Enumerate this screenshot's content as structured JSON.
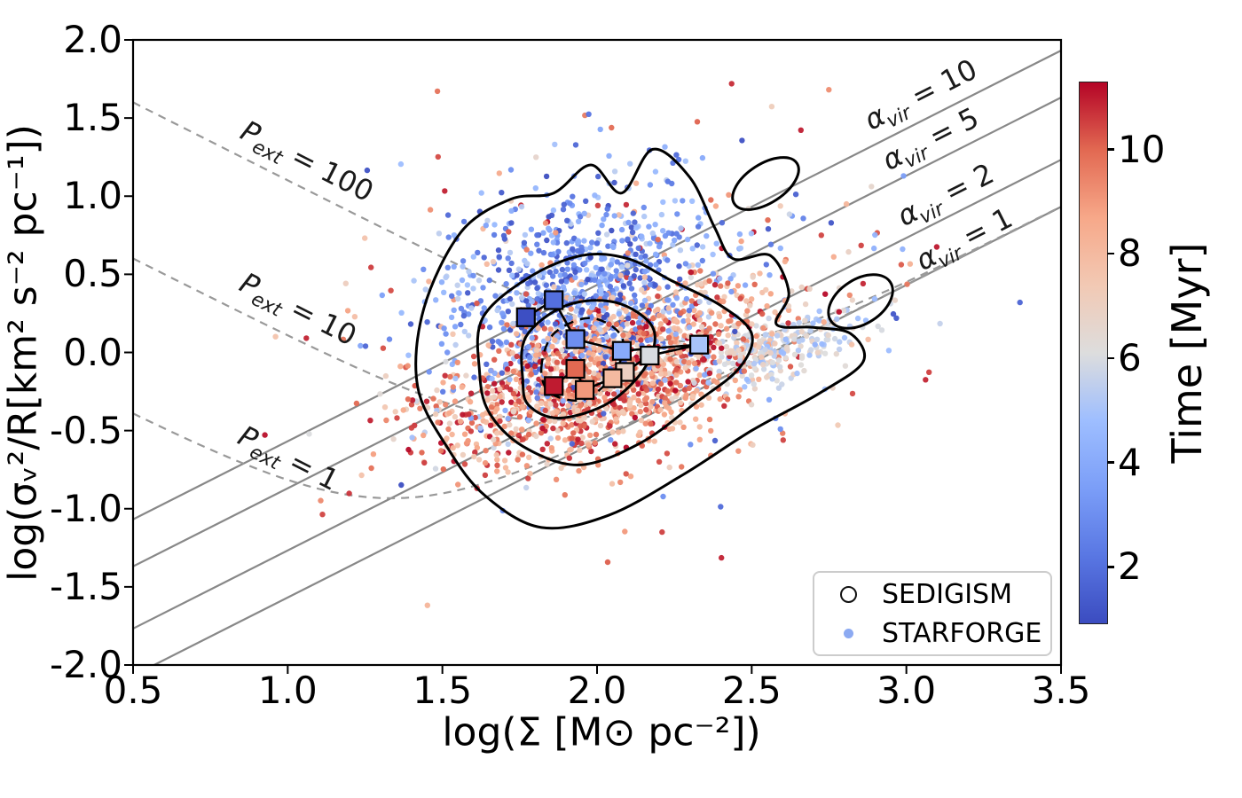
{
  "figure": {
    "background": "#ffffff",
    "frame_color": "#000000"
  },
  "chart_data": {
    "type": "scatter",
    "title": "",
    "xlabel": "log(Σ [M⊙ pc⁻²])",
    "ylabel": "log(σᵥ²/R[km² s⁻² pc⁻¹])",
    "xlim": [
      0.5,
      3.5
    ],
    "ylim": [
      -2.0,
      2.0
    ],
    "grid": false,
    "x_ticks": [
      0.5,
      1.0,
      1.5,
      2.0,
      2.5,
      3.0,
      3.5
    ],
    "x_tick_labels": [
      "0.5",
      "1.0",
      "1.5",
      "2.0",
      "2.5",
      "3.0",
      "3.5"
    ],
    "y_ticks": [
      2.0,
      1.5,
      1.0,
      0.5,
      0.0,
      -0.5,
      -1.0,
      -1.5,
      -2.0
    ],
    "y_tick_labels": [
      "2.0",
      "1.5",
      "1.0",
      "0.5",
      "0.0",
      "-0.5",
      "-1.0",
      "-1.5",
      "-2.0"
    ],
    "colorbar": {
      "label": "Time [Myr]",
      "vmin": 0.9,
      "vmax": 11.3,
      "ticks": [
        2,
        4,
        6,
        8,
        10
      ],
      "tick_labels": [
        "2",
        "4",
        "6",
        "8",
        "10"
      ],
      "colormap": "coolwarm",
      "stops": [
        [
          0.0,
          "#3b4cc0"
        ],
        [
          0.125,
          "#5977e3"
        ],
        [
          0.25,
          "#7b9ef8"
        ],
        [
          0.375,
          "#9ebeff"
        ],
        [
          0.5,
          "#dddddd"
        ],
        [
          0.625,
          "#f2c9b4"
        ],
        [
          0.75,
          "#f7a889"
        ],
        [
          0.875,
          "#e26952"
        ],
        [
          1.0,
          "#b40426"
        ]
      ]
    },
    "legend": {
      "items": [
        {
          "label": "SEDIGISM",
          "marker": "open-circle",
          "color": "#111111"
        },
        {
          "label": "STARFORGE",
          "marker": "filled-dot",
          "color": "#8caaf2"
        }
      ]
    },
    "virial_lines": {
      "slope": 1,
      "color": "#888888",
      "lines": [
        {
          "alpha": 10,
          "intercept": -1.568,
          "label": {
            "sym": "α",
            "sub": "vir",
            "eq": " = 10"
          },
          "label_x": 3.05,
          "label_dy": -27
        },
        {
          "alpha": 5,
          "intercept": -1.869,
          "label": {
            "sym": "α",
            "sub": "vir",
            "eq": " = 5"
          },
          "label_x": 3.08,
          "label_dy": -25
        },
        {
          "alpha": 2,
          "intercept": -2.267,
          "label": {
            "sym": "α",
            "sub": "vir",
            "eq": " = 2"
          },
          "label_x": 3.13,
          "label_dy": -23
        },
        {
          "alpha": 1,
          "intercept": -2.568,
          "label": {
            "sym": "α",
            "sub": "vir",
            "eq": " = 1"
          },
          "label_x": 3.19,
          "label_dy": -16
        }
      ]
    },
    "pressure_curves": {
      "formula": "y = log10(a*10^x + b*P/10^x)",
      "a": 0.0027,
      "b": 1.26,
      "color": "#999999",
      "curves": [
        {
          "P": 100,
          "label": {
            "sym": "P",
            "sub": "ext",
            "eq": " = 100"
          },
          "label_x": 1.06,
          "label_dy": -30
        },
        {
          "P": 10,
          "label": {
            "sym": "P",
            "sub": "ext",
            "eq": " = 10"
          },
          "label_x": 1.03,
          "label_dy": -32
        },
        {
          "P": 1,
          "label": {
            "sym": "P",
            "sub": "ext",
            "eq": " = 1"
          },
          "label_x": 1.0,
          "label_dy": -22
        }
      ]
    },
    "track": {
      "description": "time-ordered median track (squares colored by time)",
      "marker_size": 20,
      "points": [
        {
          "t": 1,
          "x": 1.77,
          "y": 0.225
        },
        {
          "t": 2,
          "x": 1.86,
          "y": 0.335
        },
        {
          "t": 3,
          "x": 1.93,
          "y": 0.085
        },
        {
          "t": 4,
          "x": 2.08,
          "y": 0.01
        },
        {
          "t": 5,
          "x": 2.33,
          "y": 0.05
        },
        {
          "t": 6,
          "x": 2.17,
          "y": -0.02
        },
        {
          "t": 7,
          "x": 2.09,
          "y": -0.125
        },
        {
          "t": 8,
          "x": 2.05,
          "y": -0.165
        },
        {
          "t": 9,
          "x": 1.96,
          "y": -0.24
        },
        {
          "t": 10,
          "x": 1.93,
          "y": -0.105
        },
        {
          "t": 11,
          "x": 1.86,
          "y": -0.215
        }
      ]
    },
    "scatter": {
      "seed": 11,
      "point_radius": 3.2,
      "opacity": 0.95,
      "clusters": [
        {
          "name": "starforge-early-blue",
          "n": 780,
          "cx": 1.93,
          "cy": 0.4,
          "sx": 0.21,
          "sy": 0.32,
          "tilt": 0.35,
          "t_min": 0.9,
          "t_max": 5.6
        },
        {
          "name": "starforge-late-red",
          "n": 1380,
          "cx": 2.03,
          "cy": -0.14,
          "sx": 0.28,
          "sy": 0.24,
          "tilt": 0.55,
          "t_min": 6.7,
          "t_max": 11.3
        },
        {
          "name": "starforge-mid-pale",
          "n": 240,
          "cx": 2.57,
          "cy": 0.03,
          "sx": 0.13,
          "sy": 0.1,
          "tilt": 0.5,
          "t_min": 4.6,
          "t_max": 7.0
        },
        {
          "name": "starforge-sparse-mix",
          "n": 300,
          "cx": 2.08,
          "cy": 0.25,
          "sx": 0.48,
          "sy": 0.55,
          "tilt": 0.3,
          "t_min": 0.9,
          "t_max": 11.3
        }
      ]
    },
    "contours": {
      "source": "SEDIGISM",
      "color": "#000000",
      "levels": [
        "outer",
        "middle",
        "inner",
        "inner-dashed"
      ],
      "detached_blobs": 2
    }
  }
}
